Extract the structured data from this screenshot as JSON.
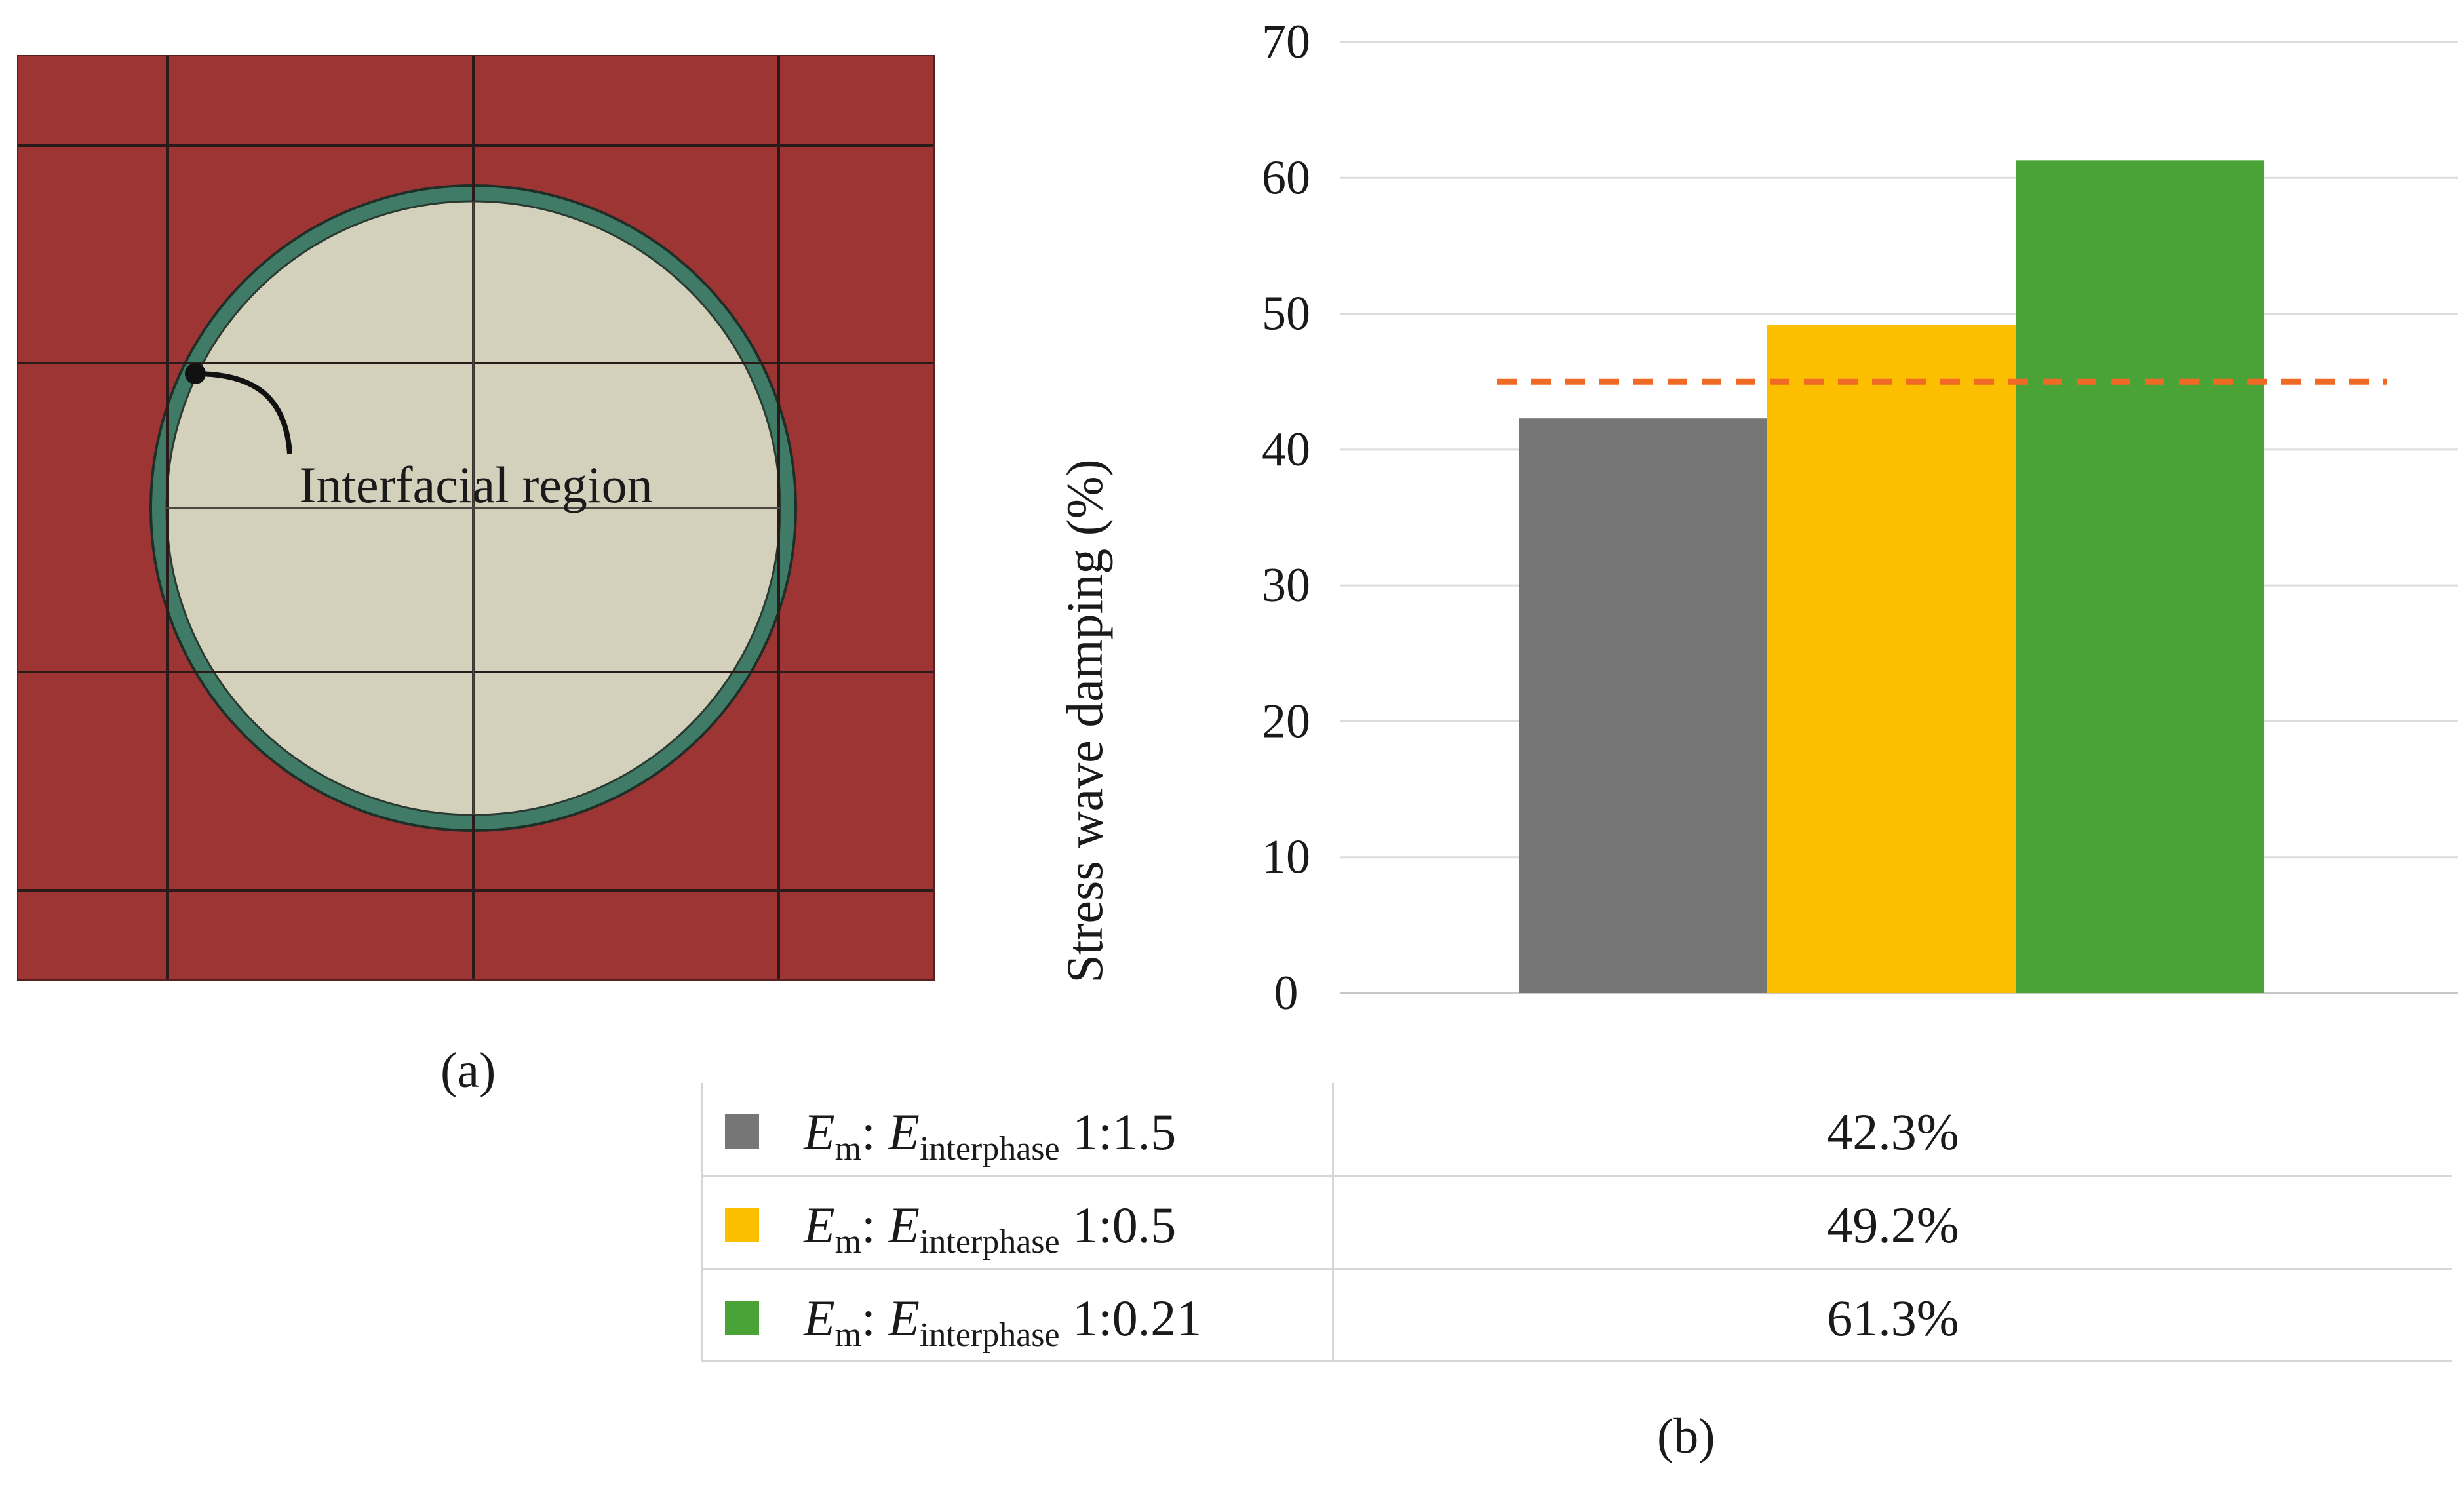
{
  "panel_a": {
    "label": "Interfacial region",
    "caption": "(a)",
    "colors": {
      "matrix": "#9e3535",
      "interphase": "#3f7b66",
      "fiber": "#d3d1bc",
      "mesh": "#2a1a1a"
    }
  },
  "panel_b": {
    "caption": "(b)"
  },
  "chart_data": {
    "type": "bar",
    "title": "",
    "xlabel": "",
    "ylabel": "Stress wave damping (%)",
    "ylim": [
      0,
      70
    ],
    "yticks": [
      0,
      10,
      20,
      30,
      40,
      50,
      60,
      70
    ],
    "grid": true,
    "reference_line": {
      "value": 45,
      "color": "#f06a25",
      "style": "dashed"
    },
    "series": [
      {
        "name": "Em: Einterphase 1:1.5",
        "value": 42.3,
        "label": "42.3%",
        "color": "#767676",
        "legend": {
          "e1": "E",
          "sub1": "m",
          "sep": ": ",
          "e2": "E",
          "sub2": "interphase",
          "ratio": " 1:1.5"
        }
      },
      {
        "name": "Em: Einterphase 1:0.5",
        "value": 49.2,
        "label": "49.2%",
        "color": "#fcbf00",
        "legend": {
          "e1": "E",
          "sub1": "m",
          "sep": ": ",
          "e2": "E",
          "sub2": "interphase",
          "ratio": " 1:0.5"
        }
      },
      {
        "name": "Em: Einterphase 1:0.21",
        "value": 61.3,
        "label": "61.3%",
        "color": "#4aa337",
        "legend": {
          "e1": "E",
          "sub1": "m",
          "sep": ": ",
          "e2": "E",
          "sub2": "interphase",
          "ratio": " 1:0.21"
        }
      }
    ]
  }
}
